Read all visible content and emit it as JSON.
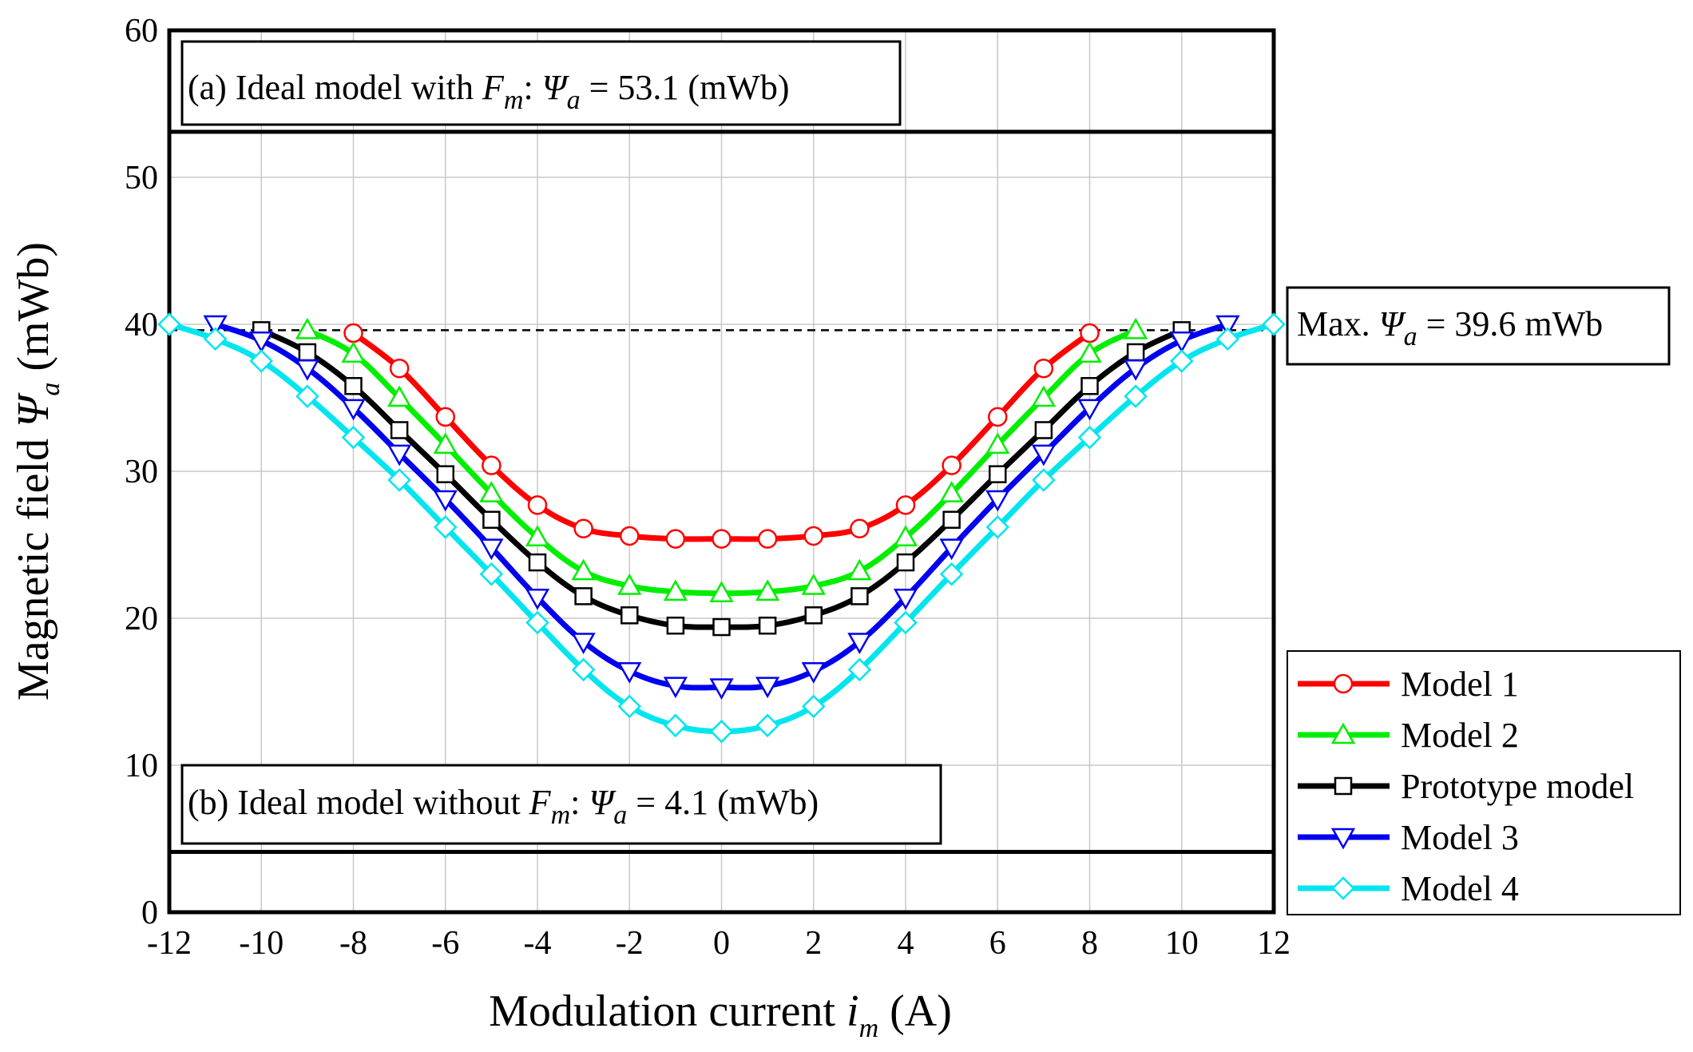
{
  "chart_data": {
    "type": "line",
    "x": [
      -12,
      -11,
      -10,
      -9,
      -8,
      -7,
      -6,
      -5,
      -4,
      -3,
      -2,
      -1,
      0,
      1,
      2,
      3,
      4,
      5,
      6,
      7,
      8,
      9,
      10,
      11,
      12
    ],
    "xlim": [
      -12,
      12
    ],
    "ylim": [
      0,
      60
    ],
    "xticks": [
      -12,
      -10,
      -8,
      -6,
      -4,
      -2,
      0,
      2,
      4,
      6,
      8,
      10,
      12
    ],
    "yticks": [
      0,
      10,
      20,
      30,
      40,
      50,
      60
    ],
    "grid": true,
    "xlabel": {
      "main": "Modulation current ",
      "var": "i",
      "sub": "m",
      "unit": " (A)"
    },
    "ylabel": {
      "main": "Magnetic field ",
      "var": "Ψ",
      "sub": "a",
      "unit": " (mWb)"
    },
    "series": [
      {
        "name": "Model 1",
        "color": "#ff0000",
        "marker": "circle",
        "x": [
          -8,
          -7,
          -6,
          -5,
          -4,
          -3,
          -2,
          -1,
          0,
          1,
          2,
          3,
          4,
          5,
          6,
          7,
          8
        ],
        "values": [
          39.4,
          37.0,
          33.7,
          30.4,
          27.7,
          26.1,
          25.6,
          25.4,
          25.4,
          25.4,
          25.6,
          26.1,
          27.7,
          30.4,
          33.7,
          37.0,
          39.4
        ]
      },
      {
        "name": "Model 2",
        "color": "#00ee00",
        "marker": "triangle-up",
        "x": [
          -9,
          -8,
          -7,
          -6,
          -5,
          -4,
          -3,
          -2,
          -1,
          0,
          1,
          2,
          3,
          4,
          5,
          6,
          7,
          8,
          9
        ],
        "values": [
          39.6,
          38.0,
          35.0,
          31.8,
          28.5,
          25.5,
          23.2,
          22.2,
          21.8,
          21.7,
          21.8,
          22.2,
          23.2,
          25.5,
          28.5,
          31.8,
          35.0,
          38.0,
          39.6
        ]
      },
      {
        "name": "Prototype model",
        "color": "#000000",
        "marker": "square",
        "x": [
          -10,
          -9,
          -8,
          -7,
          -6,
          -5,
          -4,
          -3,
          -2,
          -1,
          0,
          1,
          2,
          3,
          4,
          5,
          6,
          7,
          8,
          9,
          10
        ],
        "values": [
          39.6,
          38.1,
          35.8,
          32.8,
          29.8,
          26.7,
          23.8,
          21.5,
          20.2,
          19.5,
          19.4,
          19.5,
          20.2,
          21.5,
          23.8,
          26.7,
          29.8,
          32.8,
          35.8,
          38.1,
          39.6
        ]
      },
      {
        "name": "Model 3",
        "color": "#0000ee",
        "marker": "triangle-down",
        "x": [
          -11,
          -10,
          -9,
          -8,
          -7,
          -6,
          -5,
          -4,
          -3,
          -2,
          -1,
          0,
          1,
          2,
          3,
          4,
          5,
          6,
          7,
          8,
          9,
          10,
          11
        ],
        "values": [
          40.0,
          38.9,
          37.0,
          34.3,
          31.2,
          28.1,
          24.8,
          21.4,
          18.4,
          16.4,
          15.4,
          15.3,
          15.4,
          16.4,
          18.4,
          21.4,
          24.8,
          28.1,
          31.2,
          34.3,
          37.0,
          38.9,
          40.0
        ]
      },
      {
        "name": "Model 4",
        "color": "#00e5ee",
        "marker": "diamond",
        "x": [
          -12,
          -11,
          -10,
          -9,
          -8,
          -7,
          -6,
          -5,
          -4,
          -3,
          -2,
          -1,
          0,
          1,
          2,
          3,
          4,
          5,
          6,
          7,
          8,
          9,
          10,
          11,
          12
        ],
        "values": [
          40.0,
          39.0,
          37.5,
          35.1,
          32.3,
          29.4,
          26.2,
          23.0,
          19.7,
          16.5,
          14.0,
          12.7,
          12.3,
          12.7,
          14.0,
          16.5,
          19.7,
          23.0,
          26.2,
          29.4,
          32.3,
          35.1,
          37.5,
          39.0,
          40.0
        ]
      }
    ],
    "reference_lines": [
      {
        "name": "ideal-with-fm",
        "y": 53.1,
        "style": "solid"
      },
      {
        "name": "ideal-without-fm",
        "y": 4.1,
        "style": "solid"
      },
      {
        "name": "max-psi",
        "y": 39.6,
        "style": "dashed"
      }
    ],
    "annotations": {
      "a": {
        "prefix": "(a) Ideal model with ",
        "fvar": "F",
        "fsub": "m",
        "colon": ": ",
        "psi": "Ψ",
        "psisub": "a",
        "value": " = 53.1 (mWb)"
      },
      "b": {
        "prefix": "(b) Ideal model without ",
        "fvar": "F",
        "fsub": "m",
        "colon": ": ",
        "psi": "Ψ",
        "psisub": "a",
        "value": " = 4.1 (mWb)"
      },
      "max": {
        "prefix": "Max. ",
        "psi": "Ψ",
        "psisub": "a",
        "value": " = 39.6 mWb"
      }
    },
    "legend_position": "right"
  }
}
